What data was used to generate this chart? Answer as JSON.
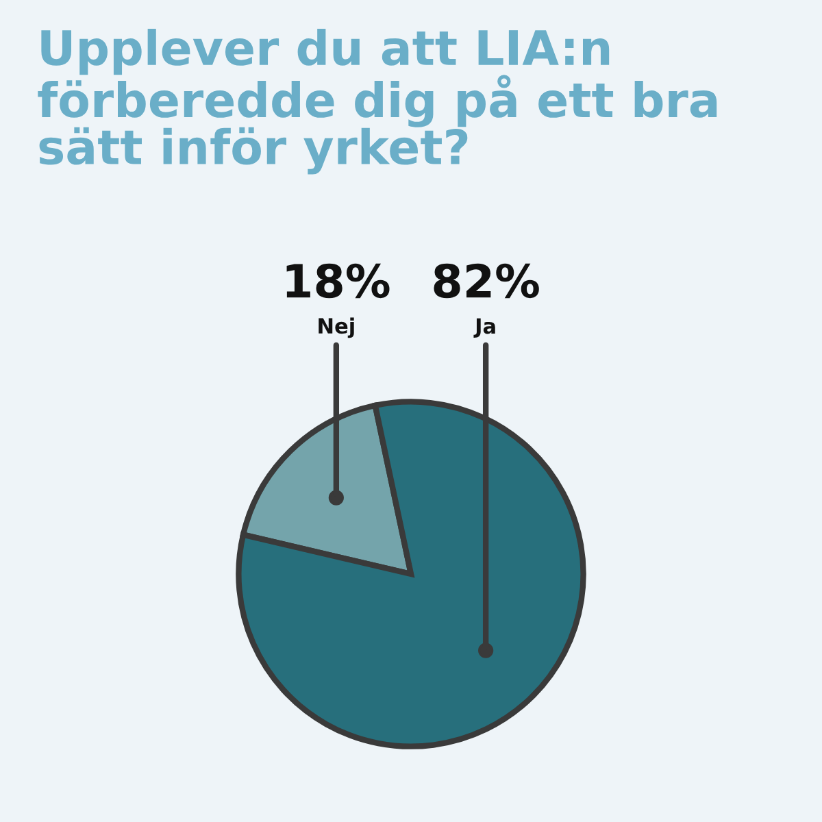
{
  "chart_data": {
    "type": "pie",
    "title": "Upplever du att LIA:n\nförberedde dig på ett bra\nsätt inför yrket?",
    "categories": [
      "Nej",
      "Ja"
    ],
    "values": [
      18,
      82
    ],
    "colors": [
      "#74a4ab",
      "#276f7c"
    ],
    "value_labels": [
      "18%",
      "82%"
    ],
    "legend": false
  }
}
